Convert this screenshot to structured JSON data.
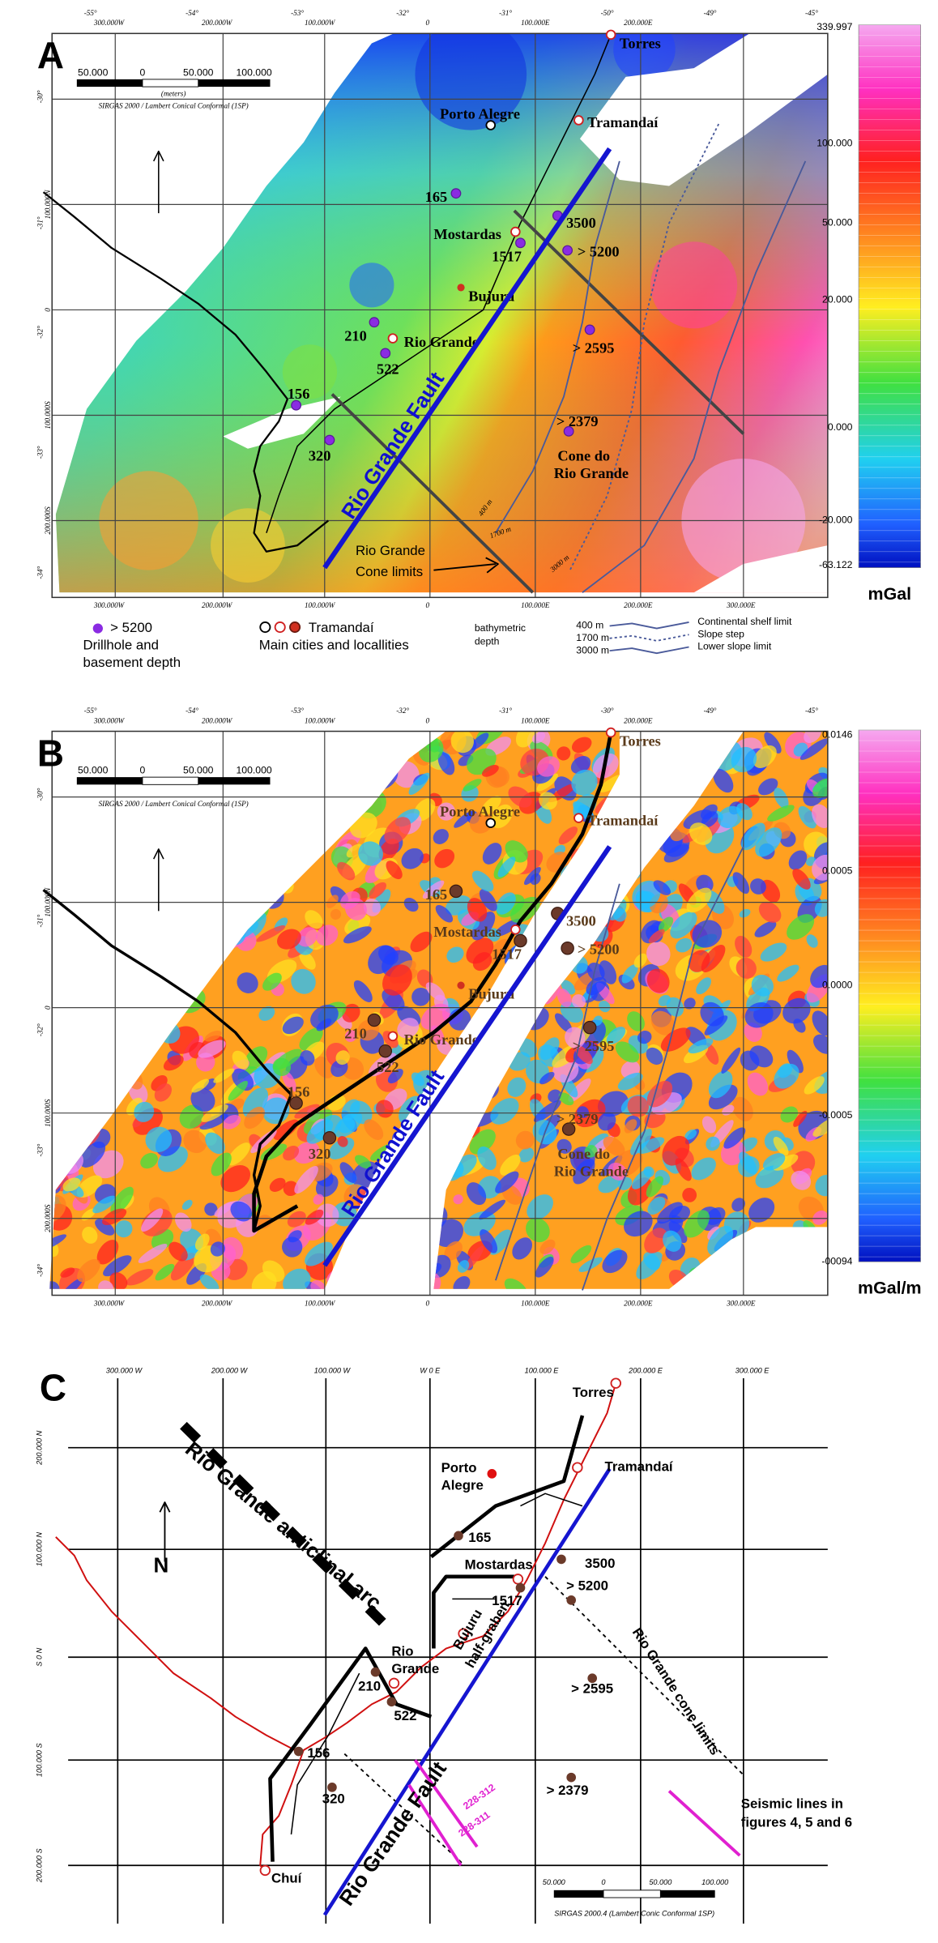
{
  "panel_a": {
    "label": "A",
    "top_degrees": [
      "-55°",
      "-54°",
      "-53°",
      "-32°",
      "-31°",
      "-50°",
      "-49°",
      "-45°"
    ],
    "top_coords": [
      "300.000W",
      "200.000W",
      "100.000W",
      "0",
      "100.000E",
      "200.000E"
    ],
    "bottom_coords": [
      "300.000W",
      "200.000W",
      "100.000W",
      "0",
      "100.000E",
      "200.000E",
      "300.000E"
    ],
    "left_degrees": [
      "-30°",
      "-31°",
      "-32°",
      "-33°",
      "-34°"
    ],
    "left_coords": [
      "100.000N",
      "0",
      "100.000S",
      "200.000S"
    ],
    "scale_ticks": [
      "50.000",
      "0",
      "50.000",
      "100.000"
    ],
    "scale_unit": "(meters)",
    "projection": "SIRGAS 2000 / Lambert Conical Conformal (1SP)",
    "places": [
      "Torres",
      "Porto Alegre",
      "Tramandaí",
      "165",
      "3500",
      "Mostardas",
      "1517",
      "> 5200",
      "Bujuru",
      "210",
      "Rio Grande",
      "522",
      "> 2595",
      "156",
      "320",
      "> 2379",
      "Cone do",
      "Rio Grande"
    ],
    "fault": "Rio Grande Fault",
    "cone_limits": [
      "Rio Grande",
      "Cone limits"
    ],
    "bathymetry": [
      "400 m",
      "1700 m",
      "3000 m"
    ],
    "colorbar_ticks": [
      "339.997",
      "100.000",
      "50.000",
      "20.000",
      "0.000",
      "-20.000",
      "-63.122"
    ],
    "colorbar_unit": "mGal",
    "legend": {
      "drillhole_sample": "> 5200",
      "drillhole": [
        "Drillhole and",
        "basement depth"
      ],
      "city_sample": "Tramandaí",
      "cities": "Main cities and locallities",
      "bathymetric": [
        "bathymetric",
        "depth"
      ],
      "depths": [
        "400 m",
        "1700 m",
        "3000 m"
      ],
      "lines": [
        "Continental shelf limit",
        "Slope step",
        "Lower slope limit"
      ]
    }
  },
  "panel_b": {
    "label": "B",
    "top_degrees": [
      "-55°",
      "-54°",
      "-53°",
      "-32°",
      "-31°",
      "-30°",
      "-49°",
      "-45°"
    ],
    "top_coords": [
      "300.000W",
      "200.000W",
      "100.000W",
      "0",
      "100.000E",
      "200.000E"
    ],
    "bottom_coords": [
      "300.000W",
      "200.000W",
      "100.000W",
      "0",
      "100.000E",
      "200.000E",
      "300.000E"
    ],
    "left_degrees": [
      "-30°",
      "-31°",
      "-32°",
      "-33°",
      "-34°"
    ],
    "left_coords": [
      "100.000N",
      "0",
      "100.000S",
      "200.000S"
    ],
    "scale_ticks": [
      "50.000",
      "0",
      "50.000",
      "100.000"
    ],
    "projection": "SIRGAS 2000 / Lambert Conical Conformal (1SP)",
    "places": [
      "Torres",
      "Porto Alegre",
      "Tramandaí",
      "165",
      "3500",
      "Mostardas",
      "1517",
      "> 5200",
      "Bujuru",
      "210",
      "Rio Grande",
      "522",
      "> 2595",
      "156",
      "320",
      "> 2379",
      "Cone do",
      "Rio Grande"
    ],
    "fault": "Rio Grande Fault",
    "colorbar_ticks": [
      "0.0146",
      "0.0005",
      "0.0000",
      "-0.0005",
      "-00094"
    ],
    "colorbar_unit": "mGal/m"
  },
  "panel_c": {
    "label": "C",
    "top_coords": [
      "300.000 W",
      "200.000 W",
      "100.000 W",
      "W 0 E",
      "100.000 E",
      "200.000 E",
      "300.000 E"
    ],
    "left_coords": [
      "200.000 N",
      "100.000 N",
      "S 0 N",
      "100.000 S",
      "200.000 S"
    ],
    "places": [
      "Torres",
      "Porto",
      "Alegre",
      "Tramandaí",
      "165",
      "Mostardas",
      "3500",
      "> 5200",
      "1517",
      "Rio",
      "Grande",
      "210",
      "522",
      "> 2595",
      "156",
      "320",
      "> 2379",
      "Chuí"
    ],
    "structures": [
      "Rio Grande anticlinal arc",
      "Bujuru",
      "half-graben",
      "Rio Grande cone limits",
      "Rio Grande Fault"
    ],
    "seismic_lines": [
      "228-312",
      "228-311"
    ],
    "seismic_legend": [
      "Seismic lines in",
      "figures 4, 5 and 6"
    ],
    "north": "N",
    "scale_ticks": [
      "50.000",
      "0",
      "50.000",
      "100.000"
    ],
    "projection": "SIRGAS 2000.4 (Lambert Conic Conformal 1SP)"
  }
}
